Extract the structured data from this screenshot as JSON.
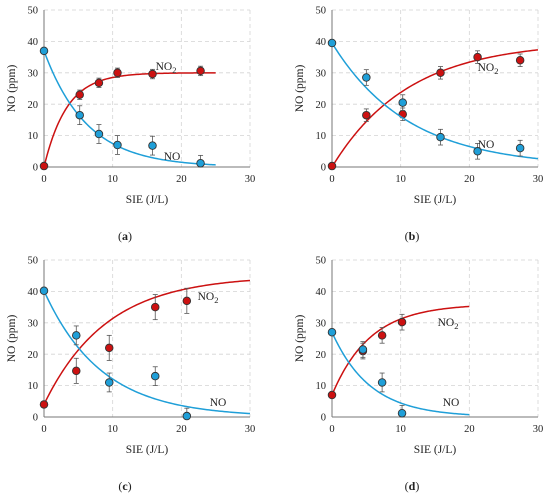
{
  "figure": {
    "colors": {
      "no2": "#cc1111",
      "no": "#1f9fd8",
      "marker_edge": "#333333",
      "grid": "#d4d4d4",
      "axis": "#777777"
    }
  },
  "chart_data": [
    {
      "type": "scatter",
      "panel_label": "(a)",
      "xlabel": "SIE (J/L)",
      "ylabel": "NO (ppm)",
      "xlim": [
        0,
        30
      ],
      "ylim": [
        0,
        50
      ],
      "xticks": [
        0,
        10,
        20,
        30
      ],
      "yticks": [
        0,
        10,
        20,
        30,
        40,
        50
      ],
      "grid": true,
      "series": [
        {
          "name": "NO2",
          "label_text": "NO",
          "label_sub": "2",
          "color": "#cc1111",
          "points": [
            {
              "x": 0,
              "y": 0.3,
              "err": 0
            },
            {
              "x": 5.2,
              "y": 23,
              "err": 1.5
            },
            {
              "x": 8,
              "y": 26.8,
              "err": 1.5
            },
            {
              "x": 10.7,
              "y": 30,
              "err": 1.5
            },
            {
              "x": 15.8,
              "y": 29.6,
              "err": 1.5
            },
            {
              "x": 22.8,
              "y": 30.6,
              "err": 1.5
            }
          ],
          "fit": {
            "model": "rise",
            "y0": 0,
            "a": 30,
            "k": 0.3,
            "xmax": 25
          }
        },
        {
          "name": "NO",
          "label_text": "NO",
          "label_sub": "",
          "color": "#1f9fd8",
          "points": [
            {
              "x": 0,
              "y": 37,
              "err": 0
            },
            {
              "x": 5.2,
              "y": 16.5,
              "err": 3
            },
            {
              "x": 8,
              "y": 10.5,
              "err": 3
            },
            {
              "x": 10.7,
              "y": 7,
              "err": 3
            },
            {
              "x": 15.8,
              "y": 6.8,
              "err": 3
            },
            {
              "x": 22.8,
              "y": 1.2,
              "err": 2.5
            }
          ],
          "fit": {
            "model": "decay",
            "a": 37,
            "k": 0.16,
            "xmax": 25
          }
        }
      ]
    },
    {
      "type": "scatter",
      "panel_label": "(b)",
      "xlabel": "SIE (J/L)",
      "ylabel": "NO (ppm)",
      "xlim": [
        0,
        30
      ],
      "ylim": [
        0,
        50
      ],
      "xticks": [
        0,
        10,
        20,
        30
      ],
      "yticks": [
        0,
        10,
        20,
        30,
        40,
        50
      ],
      "grid": true,
      "series": [
        {
          "name": "NO2",
          "label_text": "NO",
          "label_sub": "2",
          "color": "#cc1111",
          "points": [
            {
              "x": 0,
              "y": 0.3,
              "err": 0
            },
            {
              "x": 5,
              "y": 16.5,
              "err": 2
            },
            {
              "x": 10.3,
              "y": 16.8,
              "err": 2
            },
            {
              "x": 15.8,
              "y": 30,
              "err": 2
            },
            {
              "x": 21.2,
              "y": 35,
              "err": 2
            },
            {
              "x": 27.4,
              "y": 34,
              "err": 2
            }
          ],
          "fit": {
            "model": "rise",
            "y0": 0,
            "a": 40,
            "k": 0.09,
            "xmax": 30
          }
        },
        {
          "name": "NO",
          "label_text": "NO",
          "label_sub": "",
          "color": "#1f9fd8",
          "points": [
            {
              "x": 0,
              "y": 39.5,
              "err": 0
            },
            {
              "x": 5,
              "y": 28.5,
              "err": 2.5
            },
            {
              "x": 10.3,
              "y": 20.5,
              "err": 2.5
            },
            {
              "x": 15.8,
              "y": 9.5,
              "err": 2.5
            },
            {
              "x": 21.2,
              "y": 5,
              "err": 2.5
            },
            {
              "x": 27.4,
              "y": 6,
              "err": 2.5
            }
          ],
          "fit": {
            "model": "decay",
            "a": 39.5,
            "k": 0.09,
            "xmax": 30
          }
        }
      ]
    },
    {
      "type": "scatter",
      "panel_label": "(c)",
      "xlabel": "SIE (J/L)",
      "ylabel": "NO (ppm)",
      "xlim": [
        0,
        30
      ],
      "ylim": [
        0,
        50
      ],
      "xticks": [
        0,
        10,
        20,
        30
      ],
      "yticks": [
        0,
        10,
        20,
        30,
        40,
        50
      ],
      "grid": true,
      "series": [
        {
          "name": "NO2",
          "label_text": "NO",
          "label_sub": "2",
          "color": "#cc1111",
          "points": [
            {
              "x": 0,
              "y": 4,
              "err": 0
            },
            {
              "x": 4.7,
              "y": 14.7,
              "err": 4
            },
            {
              "x": 9.5,
              "y": 22,
              "err": 4
            },
            {
              "x": 16.2,
              "y": 35,
              "err": 4
            },
            {
              "x": 20.8,
              "y": 37,
              "err": 4
            }
          ],
          "fit": {
            "model": "rise",
            "y0": 4,
            "a": 41,
            "k": 0.11,
            "xmax": 30
          }
        },
        {
          "name": "NO",
          "label_text": "NO",
          "label_sub": "",
          "color": "#1f9fd8",
          "points": [
            {
              "x": 0,
              "y": 40.2,
              "err": 0
            },
            {
              "x": 4.7,
              "y": 26,
              "err": 3
            },
            {
              "x": 9.5,
              "y": 11,
              "err": 3
            },
            {
              "x": 16.2,
              "y": 13,
              "err": 3
            },
            {
              "x": 20.8,
              "y": 0.3,
              "err": 2.5
            }
          ],
          "fit": {
            "model": "decay",
            "a": 40.2,
            "k": 0.12,
            "xmax": 30
          }
        }
      ]
    },
    {
      "type": "scatter",
      "panel_label": "(d)",
      "xlabel": "SIE (J/L)",
      "ylabel": "NO (ppm)",
      "xlim": [
        0,
        30
      ],
      "ylim": [
        0,
        50
      ],
      "xticks": [
        0,
        10,
        20,
        30
      ],
      "yticks": [
        0,
        10,
        20,
        30,
        40,
        50
      ],
      "grid": true,
      "series": [
        {
          "name": "NO2",
          "label_text": "NO",
          "label_sub": "2",
          "color": "#cc1111",
          "points": [
            {
              "x": 0,
              "y": 7,
              "err": 0
            },
            {
              "x": 4.5,
              "y": 21,
              "err": 2.5
            },
            {
              "x": 7.3,
              "y": 26,
              "err": 2.5
            },
            {
              "x": 10.2,
              "y": 30.2,
              "err": 2.5
            }
          ],
          "fit": {
            "model": "rise",
            "y0": 7,
            "a": 29,
            "k": 0.18,
            "xmax": 20
          }
        },
        {
          "name": "NO",
          "label_text": "NO",
          "label_sub": "",
          "color": "#1f9fd8",
          "points": [
            {
              "x": 0,
              "y": 27,
              "err": 0
            },
            {
              "x": 4.5,
              "y": 21.5,
              "err": 2.5
            },
            {
              "x": 7.3,
              "y": 11,
              "err": 3
            },
            {
              "x": 10.2,
              "y": 1.2,
              "err": 2.5
            }
          ],
          "fit": {
            "model": "decay",
            "a": 27,
            "k": 0.18,
            "xmax": 20
          }
        }
      ]
    }
  ]
}
